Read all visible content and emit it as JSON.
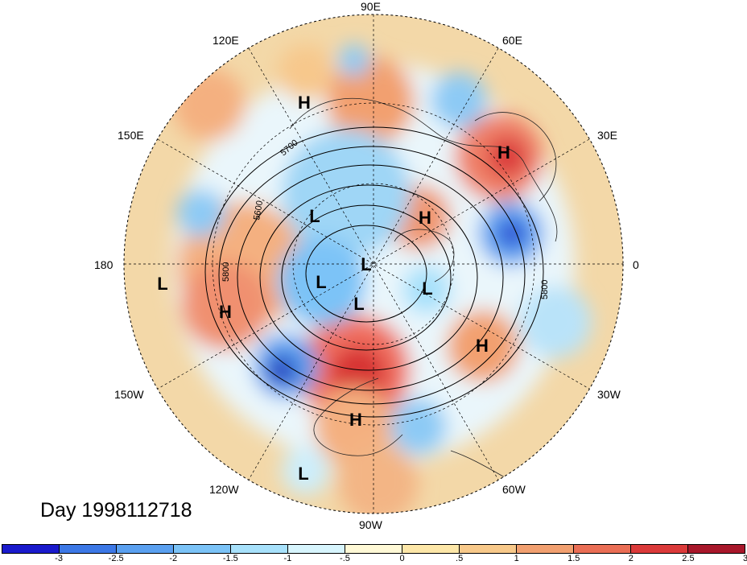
{
  "map": {
    "projection": "north-polar-stereographic",
    "hemisphere": "northern",
    "longitude_labels": {
      "e90": "90E",
      "e120": "120E",
      "e60": "60E",
      "e150": "150E",
      "e30": "30E",
      "lon180": "180",
      "lon0": "0",
      "w150": "150W",
      "w30": "30W",
      "w120": "120W",
      "w60": "60W",
      "w90": "90W"
    },
    "contour_labels": [
      "5700",
      "5600",
      "5800",
      "5800"
    ],
    "pressure_centers": [
      "H",
      "H",
      "H",
      "L",
      "H",
      "L",
      "L",
      "L",
      "L",
      "L",
      "H",
      "H",
      "H",
      "L"
    ],
    "day_label": "Day 1998112718"
  },
  "colorbar": {
    "colors": [
      "#1a1acc",
      "#3c78e6",
      "#5aa0f0",
      "#7bc3f7",
      "#a7e1fb",
      "#d7f5fd",
      "#fff9d6",
      "#fde7a8",
      "#f8c98a",
      "#f2a070",
      "#ea6e55",
      "#db3a3a",
      "#a8172a"
    ],
    "ticks": [
      "-3",
      "-2.5",
      "-2",
      "-1.5",
      "-1",
      "-.5",
      "0",
      ".5",
      "1",
      "1.5",
      "2",
      "2.5",
      "3"
    ]
  }
}
